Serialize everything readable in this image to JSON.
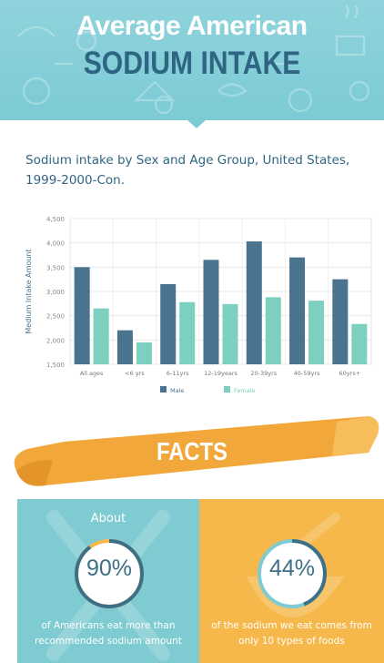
{
  "header": {
    "title_line1": "Average American",
    "title_line2": "SODIUM INTAKE"
  },
  "subtitle": "Sodium intake by Sex and Age Group, United States, 1999-2000-Con.",
  "chart_data": {
    "type": "bar",
    "title": "",
    "xlabel": "",
    "ylabel": "Medium Intake Amount",
    "ylim": [
      1500,
      4500
    ],
    "yticks": [
      "1,500",
      "2,000",
      "2,500",
      "3,000",
      "3,500",
      "4,000",
      "4,500"
    ],
    "grid": true,
    "legend_position": "bottom",
    "categories": [
      "All ages",
      "<6 yrs",
      "6-11yrs",
      "12-19years",
      "20-39yrs",
      "40-59yrs",
      "60yrs+"
    ],
    "series": [
      {
        "name": "Male",
        "color": "#4a7390",
        "values": [
          3500,
          2200,
          3150,
          3650,
          4030,
          3700,
          3250
        ]
      },
      {
        "name": "Female",
        "color": "#7dcfc0",
        "values": [
          2650,
          1950,
          2780,
          2740,
          2880,
          2810,
          2330
        ]
      }
    ]
  },
  "facts": {
    "banner_label": "FACTS",
    "left": {
      "prefix": "About",
      "percent_label": "90%",
      "percent": 90,
      "caption": "of Americans eat more than recommended sodium amount"
    },
    "right": {
      "percent_label": "44%",
      "percent": 44,
      "caption": "of the sodium we eat comes from only 10 types of foods"
    }
  },
  "colors": {
    "header_bg": "#7ccbd5",
    "title_dark": "#2f6582",
    "banner_orange": "#f4a93b",
    "panel_teal": "#7fcbd2",
    "panel_orange": "#f6b84b"
  }
}
